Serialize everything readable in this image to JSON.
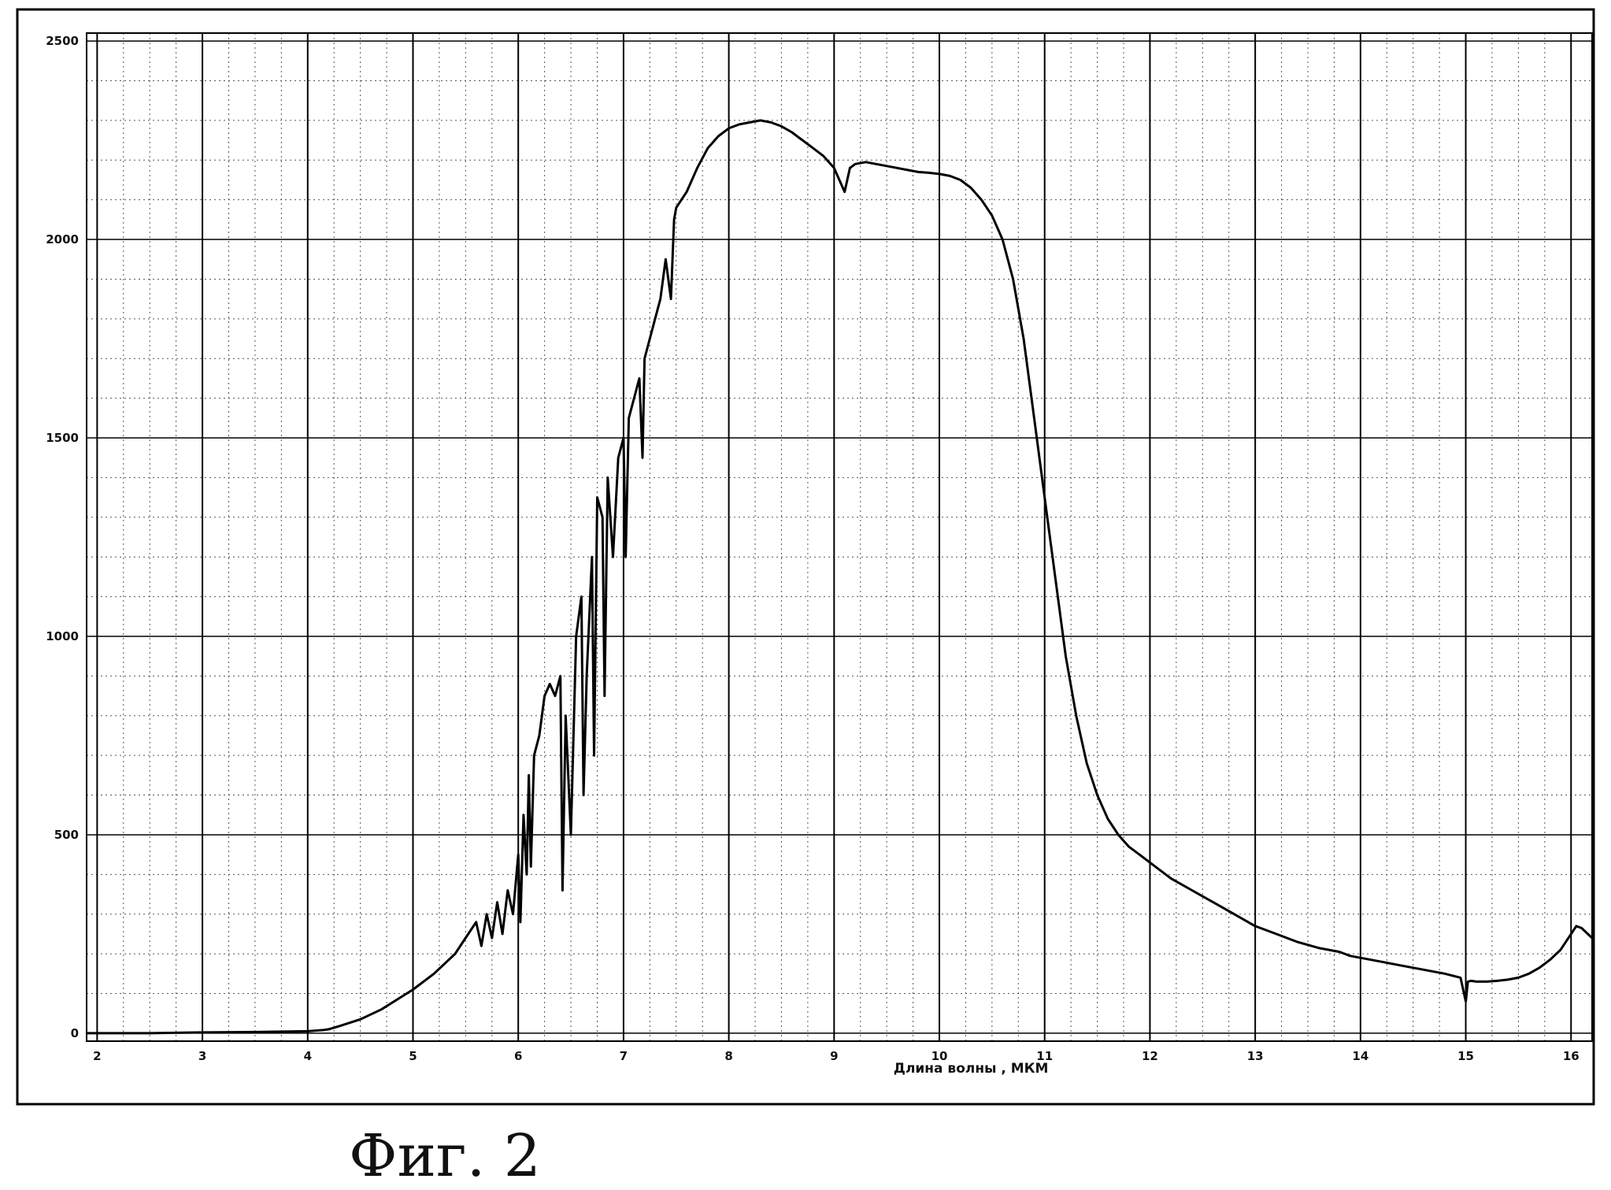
{
  "caption": "Фиг. 2",
  "chart_data": {
    "type": "line",
    "title": "",
    "xlabel": "Длина волны  ,  МКМ",
    "ylabel": "",
    "xlim": [
      1.9,
      16.2
    ],
    "ylim": [
      -20,
      2520
    ],
    "grid": true,
    "x_ticks": [
      2,
      3,
      4,
      5,
      6,
      7,
      8,
      9,
      10,
      11,
      12,
      13,
      14,
      15,
      16
    ],
    "x_tick_labels": [
      "2",
      "3",
      "4",
      "5",
      "6",
      "7",
      "8",
      "9",
      "10",
      "11",
      "12",
      "13",
      "14",
      "15",
      "16"
    ],
    "y_ticks": [
      0,
      500,
      1000,
      1500,
      2000,
      2500
    ],
    "y_tick_labels": [
      "0",
      "500",
      "1000",
      "1500",
      "2000",
      "2500"
    ],
    "series": [
      {
        "name": "",
        "color": "#000000",
        "x": [
          1.9,
          2.5,
          3.0,
          3.5,
          4.0,
          4.15,
          4.2,
          4.3,
          4.5,
          4.7,
          5.0,
          5.2,
          5.4,
          5.5,
          5.6,
          5.65,
          5.7,
          5.75,
          5.8,
          5.85,
          5.9,
          5.95,
          6.0,
          6.02,
          6.05,
          6.08,
          6.1,
          6.12,
          6.15,
          6.2,
          6.25,
          6.3,
          6.35,
          6.4,
          6.42,
          6.45,
          6.5,
          6.55,
          6.6,
          6.62,
          6.65,
          6.7,
          6.72,
          6.75,
          6.8,
          6.82,
          6.85,
          6.9,
          6.95,
          7.0,
          7.02,
          7.05,
          7.1,
          7.15,
          7.18,
          7.2,
          7.25,
          7.3,
          7.35,
          7.4,
          7.45,
          7.48,
          7.5,
          7.55,
          7.6,
          7.7,
          7.8,
          7.9,
          8.0,
          8.1,
          8.2,
          8.3,
          8.4,
          8.5,
          8.6,
          8.7,
          8.8,
          8.9,
          9.0,
          9.05,
          9.1,
          9.15,
          9.2,
          9.3,
          9.4,
          9.5,
          9.6,
          9.7,
          9.8,
          9.9,
          10.0,
          10.1,
          10.2,
          10.3,
          10.4,
          10.5,
          10.6,
          10.7,
          10.8,
          10.9,
          11.0,
          11.1,
          11.2,
          11.3,
          11.4,
          11.5,
          11.6,
          11.7,
          11.8,
          11.9,
          12.0,
          12.1,
          12.2,
          12.4,
          12.6,
          12.8,
          13.0,
          13.2,
          13.4,
          13.6,
          13.8,
          13.85,
          13.9,
          14.0,
          14.2,
          14.4,
          14.6,
          14.8,
          14.95,
          15.0,
          15.02,
          15.05,
          15.1,
          15.2,
          15.3,
          15.4,
          15.5,
          15.6,
          15.7,
          15.8,
          15.9,
          16.0,
          16.05,
          16.1,
          16.2
        ],
        "y": [
          0,
          0,
          2,
          3,
          5,
          8,
          10,
          18,
          35,
          60,
          110,
          150,
          200,
          240,
          280,
          220,
          300,
          240,
          330,
          250,
          360,
          300,
          450,
          280,
          550,
          400,
          650,
          420,
          700,
          750,
          850,
          880,
          850,
          900,
          360,
          800,
          500,
          1000,
          1100,
          600,
          900,
          1200,
          700,
          1350,
          1300,
          850,
          1400,
          1200,
          1450,
          1500,
          1200,
          1550,
          1600,
          1650,
          1450,
          1700,
          1750,
          1800,
          1850,
          1950,
          1850,
          2050,
          2080,
          2100,
          2120,
          2180,
          2230,
          2260,
          2280,
          2290,
          2295,
          2300,
          2295,
          2285,
          2270,
          2250,
          2230,
          2210,
          2180,
          2150,
          2120,
          2180,
          2190,
          2195,
          2190,
          2185,
          2180,
          2175,
          2170,
          2168,
          2165,
          2160,
          2150,
          2130,
          2100,
          2060,
          2000,
          1900,
          1750,
          1550,
          1350,
          1150,
          950,
          800,
          680,
          600,
          540,
          500,
          470,
          450,
          430,
          410,
          390,
          360,
          330,
          300,
          270,
          250,
          230,
          215,
          205,
          200,
          195,
          190,
          180,
          170,
          160,
          150,
          140,
          80,
          130,
          132,
          130,
          130,
          132,
          135,
          140,
          150,
          165,
          185,
          210,
          250,
          270,
          265,
          240
        ]
      }
    ]
  }
}
